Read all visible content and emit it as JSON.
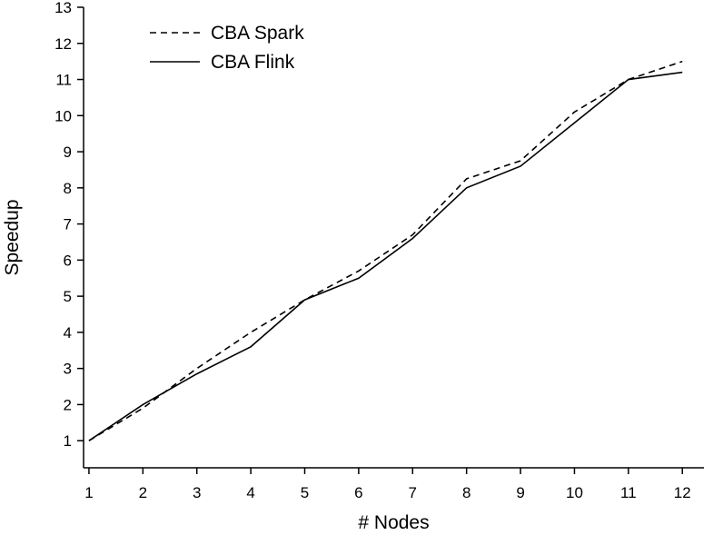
{
  "chart_data": {
    "type": "line",
    "xlabel": "# Nodes",
    "ylabel": "Speedup",
    "xlim": [
      0.9,
      12.4
    ],
    "ylim": [
      0.25,
      13.0
    ],
    "x_ticks": [
      1,
      2,
      3,
      4,
      5,
      6,
      7,
      8,
      9,
      10,
      11,
      12
    ],
    "y_ticks": [
      1,
      2,
      3,
      4,
      5,
      6,
      7,
      8,
      9,
      10,
      11,
      12,
      13
    ],
    "grid": false,
    "legend_position": "top-left",
    "x": [
      1,
      2,
      3,
      4,
      5,
      6,
      7,
      8,
      9,
      10,
      11,
      12
    ],
    "series": [
      {
        "name": "CBA Spark",
        "line_style": "dashed",
        "color": "#000000",
        "values": [
          1.0,
          1.9,
          3.0,
          4.0,
          4.9,
          5.7,
          6.7,
          8.25,
          8.75,
          10.1,
          11.0,
          11.5
        ]
      },
      {
        "name": "CBA Flink",
        "line_style": "solid",
        "color": "#000000",
        "values": [
          1.0,
          2.0,
          2.85,
          3.6,
          4.9,
          5.5,
          6.6,
          8.0,
          8.6,
          9.8,
          11.0,
          11.2
        ]
      }
    ]
  }
}
